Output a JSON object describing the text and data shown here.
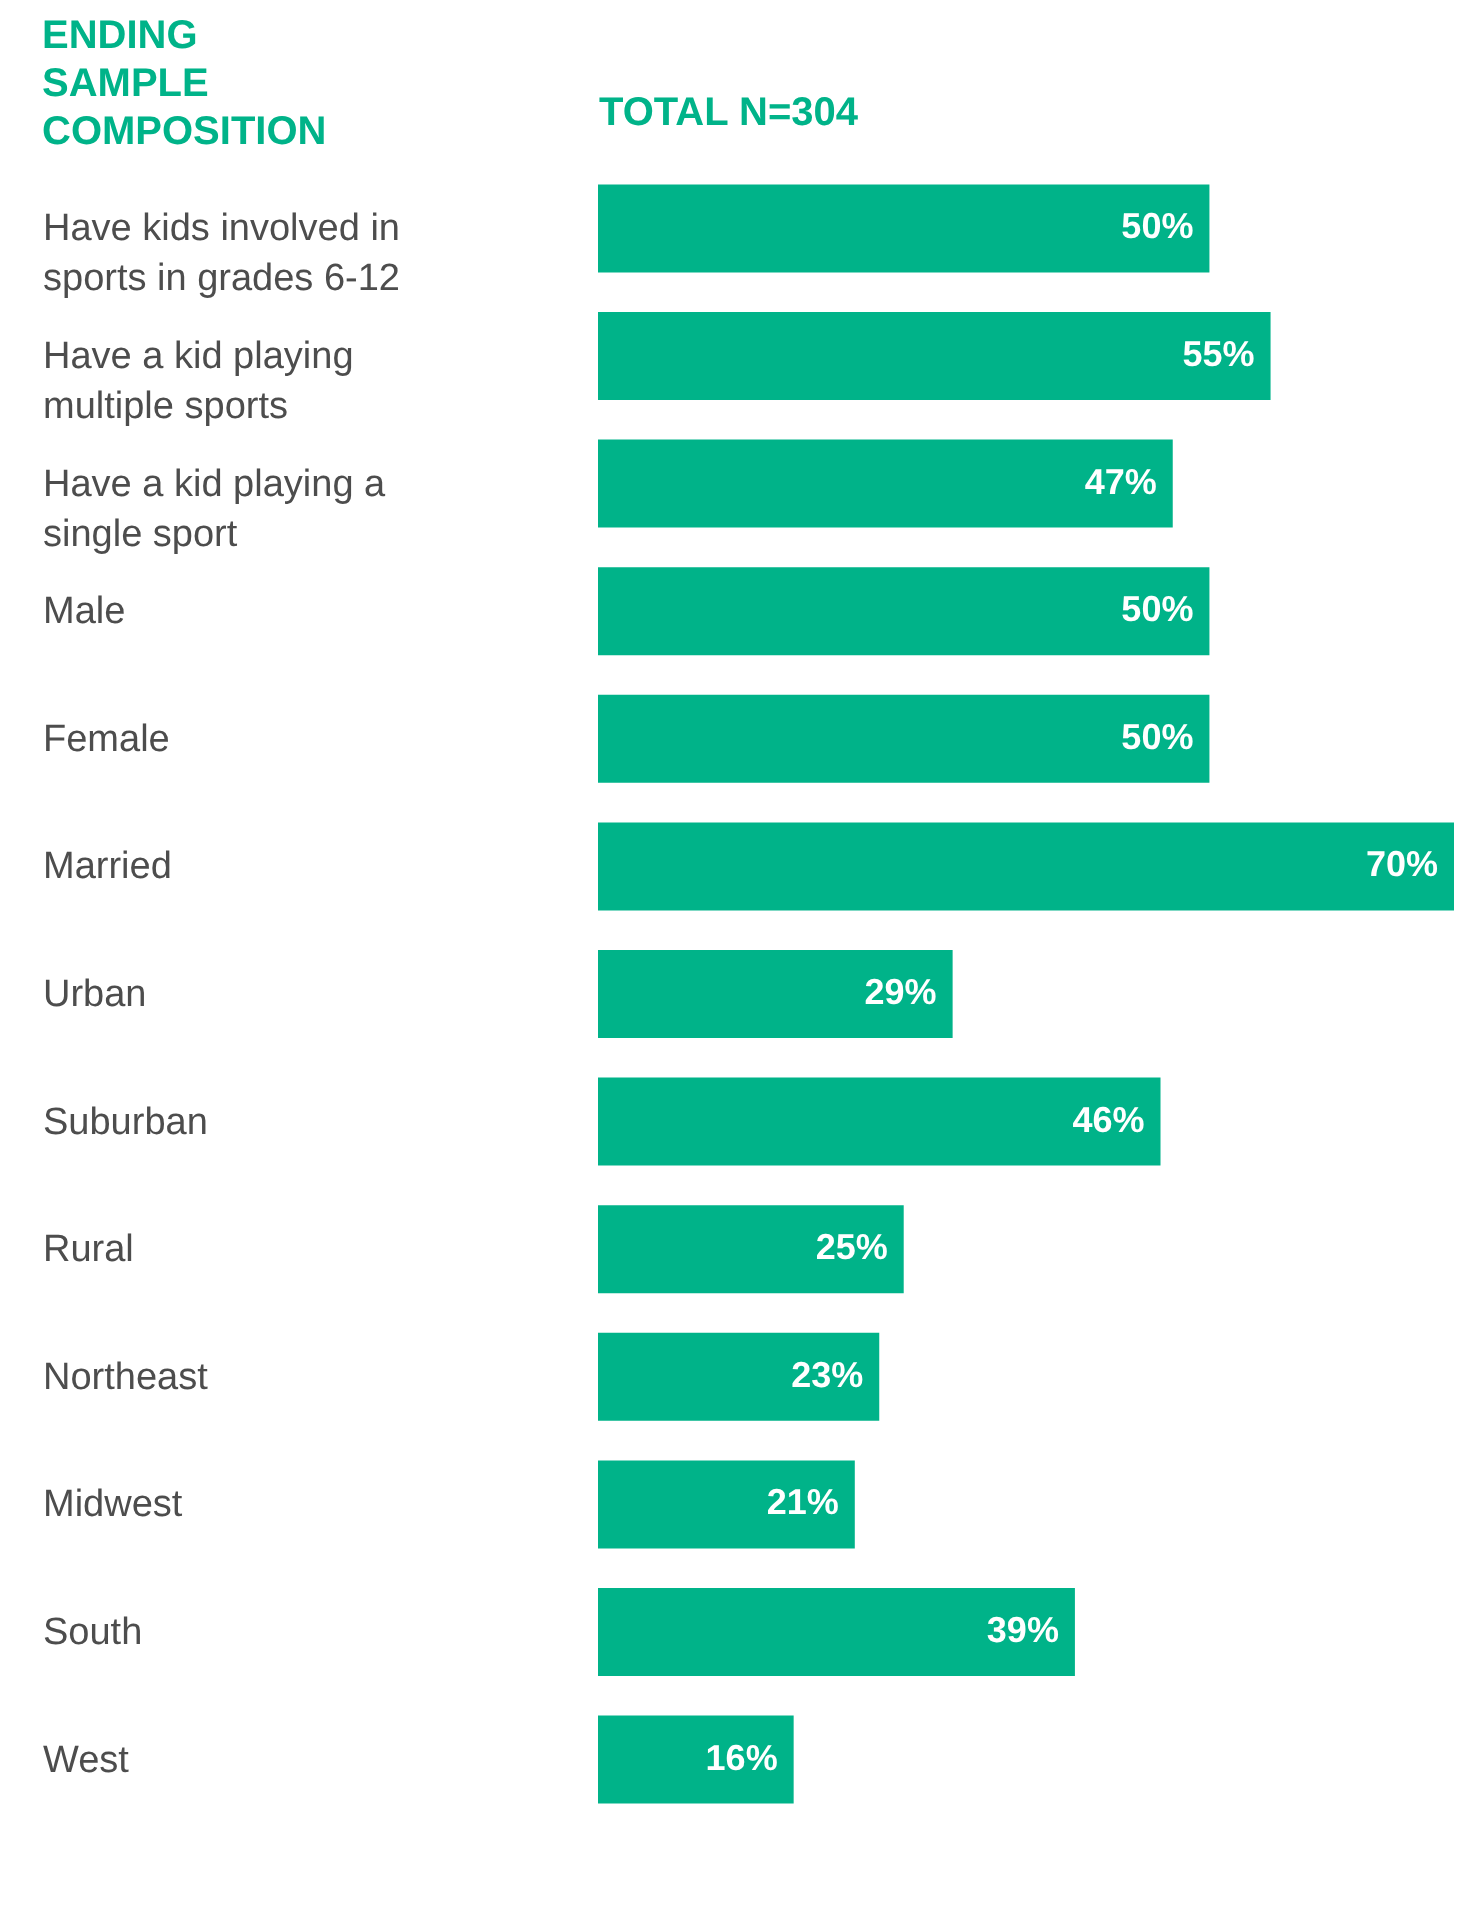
{
  "chart_data": {
    "type": "bar",
    "orientation": "horizontal",
    "title": "ENDING\nSAMPLE\nCOMPOSITION",
    "xlabel": "TOTAL N=304",
    "categories": [
      "Have kids involved in\nsports in grades 6-12",
      "Have a kid playing\nmultiple sports",
      "Have a kid playing a\nsingle sport",
      "Male",
      "Female",
      "Married",
      "Urban",
      "Suburban",
      "Rural",
      "Northeast",
      "Midwest",
      "South",
      "West"
    ],
    "values": [
      50,
      55,
      47,
      50,
      50,
      70,
      29,
      46,
      25,
      23,
      21,
      39,
      16
    ],
    "value_labels": [
      "50%",
      "55%",
      "47%",
      "50%",
      "50%",
      "70%",
      "29%",
      "46%",
      "25%",
      "23%",
      "21%",
      "39%",
      "16%"
    ],
    "color": "#00b389",
    "xlim": [
      0,
      70
    ],
    "tick_labels": "y",
    "grid": false
  }
}
